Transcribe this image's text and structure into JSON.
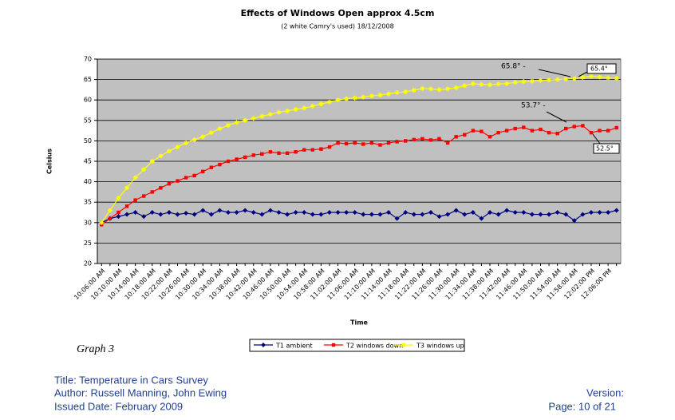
{
  "chart_data": {
    "type": "line",
    "title": "Effects of Windows Open approx 4.5cm",
    "subtitle": "(2 white Camry's used) 18/12/2008",
    "y_label": "Celsius",
    "x_label": "Time",
    "categories": [
      "10:06:00 AM",
      null,
      "10:10:00 AM",
      null,
      "10:14:00 AM",
      null,
      "10:18:00 AM",
      null,
      "10:22:00 AM",
      null,
      "10:26:00 AM",
      null,
      "10:30:00 AM",
      null,
      "10:34:00 AM",
      null,
      "10:38:00 AM",
      null,
      "10:42:00 AM",
      null,
      "10:46:00 AM",
      null,
      "10:50:00 AM",
      null,
      "10:54:00 AM",
      null,
      "10:58:00 AM",
      null,
      "11:02:00 AM",
      null,
      "11:06:00 AM",
      null,
      "11:10:00 AM",
      null,
      "11:14:00 AM",
      null,
      "11:18:00 AM",
      null,
      "11:22:00 AM",
      null,
      "11:26:00 AM",
      null,
      "11:30:00 AM",
      null,
      "11:34:00 AM",
      null,
      "11:38:00 AM",
      null,
      "11:42:00 AM",
      null,
      "11:46:00 AM",
      null,
      "11:50:00 AM",
      null,
      "11:54:00 AM",
      null,
      "11:58:00 AM",
      null,
      "12:02:00 PM",
      null,
      "12:06:00 PM",
      null
    ],
    "series": [
      {
        "name": "T1 ambient",
        "color": "#000080",
        "marker": "diamond",
        "values": [
          30,
          31,
          31.5,
          32,
          32.5,
          31.5,
          32.5,
          32,
          32.5,
          32,
          32.3,
          32,
          33,
          32,
          33,
          32.5,
          32.5,
          33,
          32.5,
          32,
          33,
          32.5,
          32,
          32.5,
          32.5,
          32,
          32,
          32.5,
          32.5,
          32.5,
          32.5,
          32,
          32,
          32,
          32.5,
          31,
          32.5,
          32,
          32,
          32.5,
          31.5,
          32,
          33,
          32,
          32.5,
          31,
          32.5,
          32,
          33,
          32.5,
          32.5,
          32,
          32,
          32,
          32.5,
          32,
          30.5,
          32,
          32.5,
          32.5,
          32.5,
          33
        ]
      },
      {
        "name": "T2 windows down",
        "color": "#ff0000",
        "marker": "square",
        "values": [
          29.5,
          31,
          32.5,
          34,
          35.5,
          36.5,
          37.5,
          38.5,
          39.5,
          40.2,
          41,
          41.5,
          42.5,
          43.5,
          44.2,
          45,
          45.5,
          46,
          46.5,
          46.8,
          47.3,
          47,
          47,
          47.3,
          47.8,
          47.8,
          48,
          48.5,
          49.5,
          49.3,
          49.5,
          49.2,
          49.5,
          49,
          49.5,
          49.8,
          50,
          50.3,
          50.5,
          50.2,
          50.5,
          49.5,
          51,
          51.5,
          52.5,
          52.3,
          51,
          52,
          52.5,
          53,
          53.3,
          52.5,
          52.8,
          52,
          51.8,
          53,
          53.5,
          53.7,
          52,
          52.5,
          52.5,
          53.2
        ]
      },
      {
        "name": "T3 windows up",
        "color": "#ffff00",
        "marker": "star",
        "values": [
          30,
          33,
          36,
          38.5,
          41,
          43,
          45,
          46.3,
          47.5,
          48.5,
          49.5,
          50.3,
          51,
          52,
          53,
          53.8,
          54.5,
          55,
          55.5,
          56,
          56.5,
          57,
          57.3,
          57.7,
          58,
          58.5,
          59,
          59.5,
          60,
          60.3,
          60.5,
          60.7,
          61,
          61.2,
          61.5,
          61.8,
          62,
          62.4,
          62.8,
          62.7,
          62.5,
          62.7,
          63,
          63.5,
          64,
          63.8,
          63.7,
          63.9,
          64,
          64.3,
          64.5,
          64.6,
          64.8,
          64.9,
          65,
          65.1,
          65.2,
          65.5,
          65.8,
          65.6,
          65.4,
          65.3
        ]
      }
    ],
    "ylim": [
      20,
      70
    ],
    "yticks": [
      20,
      25,
      30,
      35,
      40,
      45,
      50,
      55,
      60,
      65,
      70
    ],
    "grid": true,
    "legend": "bottom",
    "annotations": [
      "65.8° -",
      "65.4°",
      "53.7° -",
      "52.5°"
    ]
  },
  "caption": "Graph 3",
  "footer": {
    "title": "Title: Temperature in Cars Survey",
    "authors": "Author: Russell Manning, John Ewing",
    "issued": "Issued Date: February 2009",
    "version": "Version:",
    "page": "Page: 10 of 21"
  }
}
